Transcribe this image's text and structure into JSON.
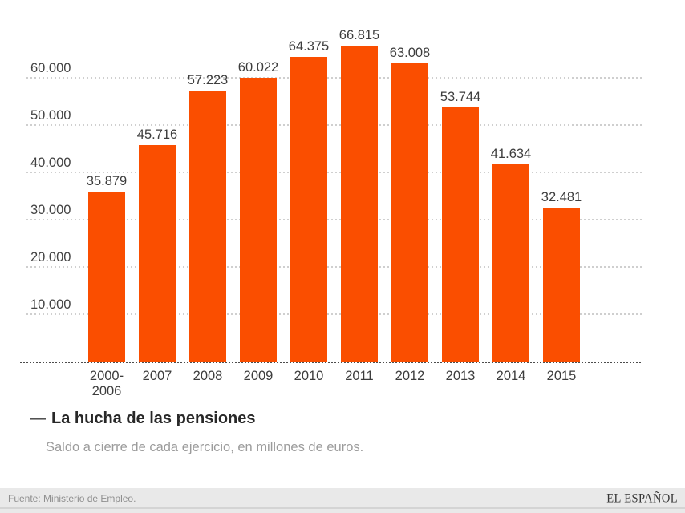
{
  "header": {
    "dash": "—",
    "title": "La hucha de las pensiones",
    "subtitle": "Saldo a cierre de cada ejercicio, en millones de euros."
  },
  "footer": {
    "source": "Fuente: Ministerio de Empleo.",
    "brand": "EL ESPAÑOL"
  },
  "chart_data": {
    "type": "bar",
    "title": "La hucha de las pensiones",
    "subtitle": "Saldo a cierre de cada ejercicio, en millones de euros.",
    "categories": [
      "2000-\n2006",
      "2007",
      "2008",
      "2009",
      "2010",
      "2011",
      "2012",
      "2013",
      "2014",
      "2015"
    ],
    "values": [
      35879,
      45716,
      57223,
      60022,
      64375,
      66815,
      63008,
      53744,
      41634,
      32481
    ],
    "value_labels": [
      "35.879",
      "45.716",
      "57.223",
      "60.022",
      "64.375",
      "66.815",
      "63.008",
      "53.744",
      "41.634",
      "32.481"
    ],
    "y_tick_values": [
      10000,
      20000,
      30000,
      40000,
      50000,
      60000
    ],
    "y_tick_labels": [
      "10.000",
      "20.000",
      "30.000",
      "40.000",
      "50.000",
      "60.000"
    ],
    "ylim": [
      0,
      70000
    ],
    "xlabel": "",
    "ylabel": "",
    "grid": true,
    "legend_position": "below-left",
    "bar_color": "#fa4e00",
    "axis_text_color": "#434343",
    "source": "Fuente: Ministerio de Empleo.",
    "brand": "EL ESPAÑOL"
  }
}
